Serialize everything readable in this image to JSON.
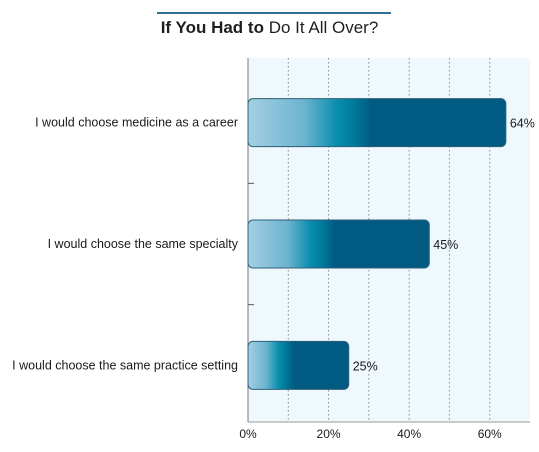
{
  "chart_data": {
    "type": "bar",
    "orientation": "horizontal",
    "title_bold": "If You Had to",
    "title_rest": " Do It All Over?",
    "categories": [
      "I would choose medicine as a career",
      "I would choose the same specialty",
      "I would choose the same practice setting"
    ],
    "values": [
      64,
      45,
      25
    ],
    "value_labels": [
      "64%",
      "45%",
      "25%"
    ],
    "xlim": [
      0,
      70
    ],
    "xticks": [
      0,
      20,
      40,
      60
    ],
    "xtick_labels": [
      "0%",
      "20%",
      "40%",
      "60%"
    ],
    "grid_values": [
      10,
      20,
      30,
      40,
      50,
      60
    ],
    "grid": true,
    "colors": {
      "bar_light": "#9cc8dd",
      "bar_mid": "#0088a8",
      "bar_dark": "#005a82",
      "bar_edge": "#2d5f7a",
      "plot_bg": "#eef8fd",
      "title_rule": "#2f6f93"
    }
  }
}
